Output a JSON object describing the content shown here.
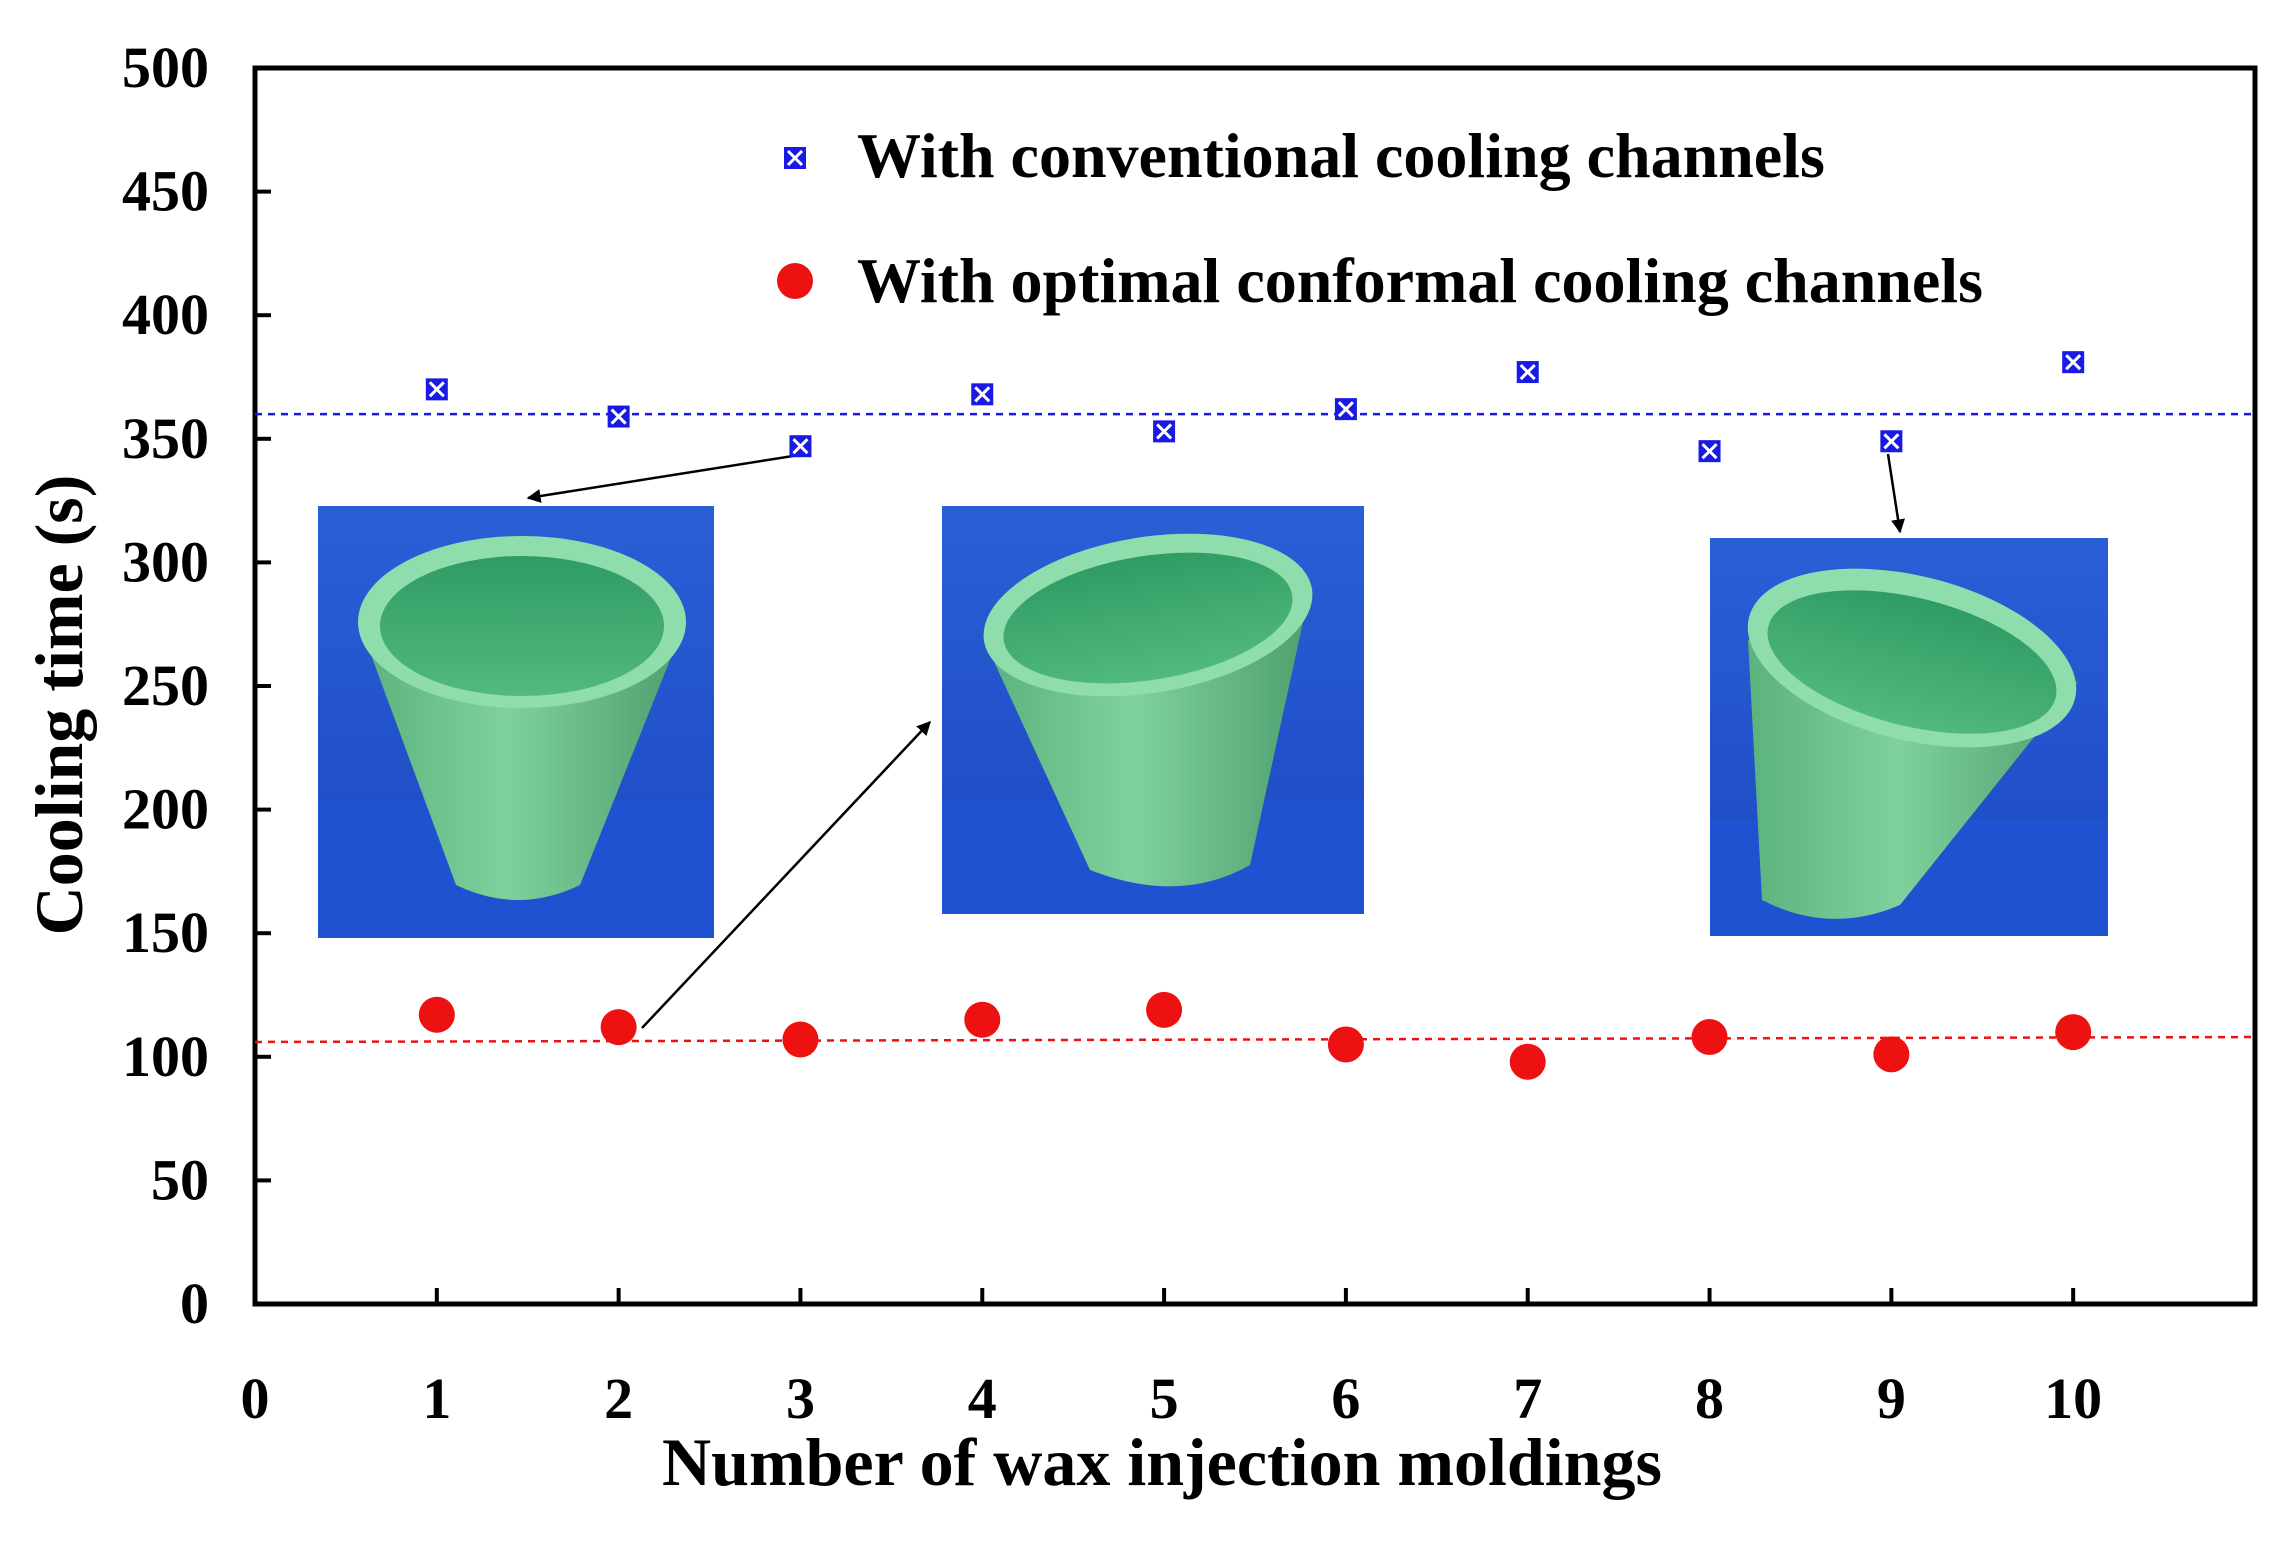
{
  "chart_data": {
    "type": "scatter",
    "xlabel": "Number of wax injection moldings",
    "ylabel": "Cooling time (s)",
    "xlim": [
      0,
      11
    ],
    "ylim": [
      0,
      500
    ],
    "x_ticks": [
      "0",
      "1",
      "2",
      "3",
      "4",
      "5",
      "6",
      "7",
      "8",
      "9",
      "10"
    ],
    "y_ticks": [
      "0",
      "50",
      "100",
      "150",
      "200",
      "250",
      "300",
      "350",
      "400",
      "450",
      "500"
    ],
    "series": [
      {
        "name": "With conventional cooling channels",
        "marker": "square-x",
        "color": "#1a1ae6",
        "x": [
          1,
          2,
          3,
          4,
          5,
          6,
          7,
          8,
          9,
          10
        ],
        "values": [
          370,
          359,
          347,
          368,
          353,
          362,
          377,
          345,
          349,
          381
        ],
        "average": 360
      },
      {
        "name": "With optimal conformal cooling channels",
        "marker": "circle",
        "color": "#ee1111",
        "x": [
          1,
          2,
          3,
          4,
          5,
          6,
          7,
          8,
          9,
          10
        ],
        "values": [
          117,
          112,
          107,
          115,
          119,
          105,
          98,
          108,
          101,
          110
        ],
        "average": [
          106,
          108
        ]
      }
    ],
    "photos": [
      {
        "name": "wax-cup-photo-a",
        "points_to": "conventional run 3"
      },
      {
        "name": "wax-cup-photo-b",
        "points_to": "conformal run 2"
      },
      {
        "name": "wax-cup-photo-c",
        "points_to": "conventional run 9"
      }
    ]
  }
}
